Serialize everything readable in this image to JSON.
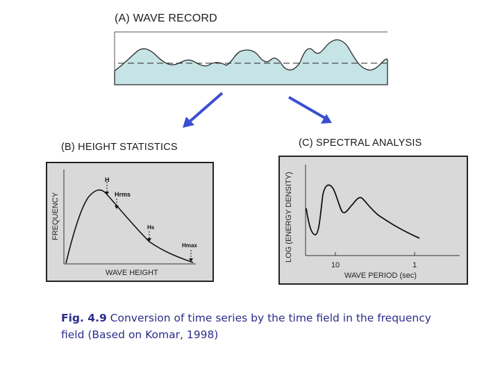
{
  "panel_a": {
    "title": "(A) WAVE RECORD"
  },
  "panel_b": {
    "title": "(B) HEIGHT STATISTICS",
    "xlabel": "WAVE HEIGHT",
    "ylabel": "FREQUENCY",
    "markers": {
      "h_mean": "H",
      "h_rms": "Hrms",
      "h_s": "Hs",
      "h_max": "Hmax"
    }
  },
  "panel_c": {
    "title": "(C) SPECTRAL ANALYSIS",
    "xlabel": "WAVE PERIOD (sec)",
    "ylabel": "LOG (ENERGY DENSITY)",
    "ticks": [
      "10",
      "1"
    ]
  },
  "caption": {
    "fig_number": "Fig. 4.9",
    "text": " Conversion of time series by the time field in the frequency field (Based on Komar, 1998)"
  },
  "colors": {
    "arrow": "#3a4fd0",
    "water": "#c6e3e6",
    "panel_bg": "#d9d9d9",
    "caption": "#2c2c8c"
  }
}
